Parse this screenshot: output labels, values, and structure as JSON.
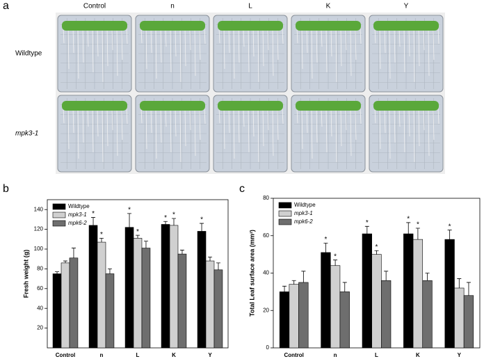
{
  "figure": {
    "panel_labels": [
      "a",
      "b",
      "c"
    ],
    "columns": [
      "Control",
      "n",
      "L",
      "K",
      "Y"
    ],
    "rows": [
      "Wildtype",
      "mpk3-1"
    ]
  },
  "chart_data": [
    {
      "type": "bar",
      "ylabel": "Fresh weight (g)",
      "categories": [
        "Control",
        "n",
        "L",
        "K",
        "Y"
      ],
      "ylim": [
        0,
        150
      ],
      "yticks": [
        20,
        40,
        60,
        80,
        100,
        120,
        140
      ],
      "legend": "upper left",
      "series": [
        {
          "name": "Wildtype",
          "color": "#000000",
          "values": [
            75,
            124,
            122,
            125,
            118
          ],
          "errors": [
            2,
            8,
            14,
            3,
            8
          ],
          "marks": [
            null,
            "*",
            "*",
            "*",
            "*"
          ]
        },
        {
          "name": "mpk3-1",
          "color": "#d0d0d0",
          "values": [
            86,
            107,
            111,
            124,
            88
          ],
          "errors": [
            2,
            4,
            3,
            7,
            4
          ],
          "marks": [
            null,
            "*",
            "*",
            "*",
            null
          ]
        },
        {
          "name": "mpk6-2",
          "color": "#6e6e6e",
          "values": [
            91,
            75,
            101,
            95,
            79
          ],
          "errors": [
            10,
            5,
            7,
            4,
            7
          ],
          "marks": [
            null,
            null,
            null,
            null,
            null
          ]
        }
      ]
    },
    {
      "type": "bar",
      "ylabel": "Total Leaf surface area (mm²)",
      "categories": [
        "Control",
        "n",
        "L",
        "K",
        "Y"
      ],
      "ylim": [
        0,
        80
      ],
      "yticks": [
        0,
        20,
        40,
        60,
        80
      ],
      "legend": "upper left",
      "series": [
        {
          "name": "Wildtype",
          "color": "#000000",
          "values": [
            30,
            51,
            61,
            61,
            58
          ],
          "errors": [
            3,
            5,
            4,
            6,
            5
          ],
          "marks": [
            null,
            "*",
            "*",
            "*",
            "*"
          ]
        },
        {
          "name": "mpk3-1",
          "color": "#d0d0d0",
          "values": [
            34,
            44,
            50,
            58,
            32
          ],
          "errors": [
            2,
            3,
            2,
            6,
            5
          ],
          "marks": [
            null,
            "*",
            "*",
            "*",
            null
          ]
        },
        {
          "name": "mpk6-2",
          "color": "#6e6e6e",
          "values": [
            35,
            30,
            36,
            36,
            28
          ],
          "errors": [
            6,
            5,
            5,
            4,
            7
          ],
          "marks": [
            null,
            null,
            null,
            null,
            null
          ]
        }
      ]
    }
  ]
}
